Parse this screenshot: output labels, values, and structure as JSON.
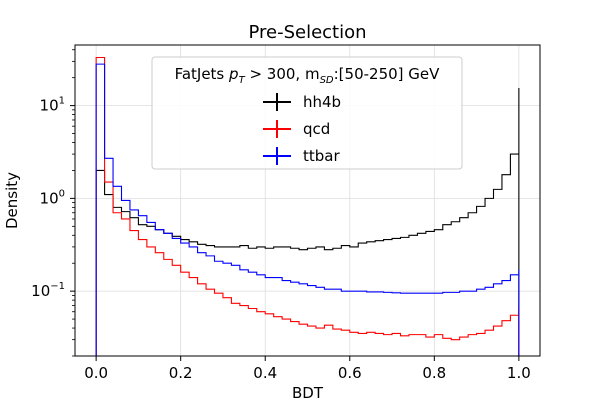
{
  "chart_data": {
    "type": "line",
    "title": "Pre-Selection",
    "xlabel": "BDT",
    "ylabel": "Density",
    "xlim": [
      -0.05,
      1.05
    ],
    "ylim": [
      0.02,
      45
    ],
    "yscale": "log",
    "grid": true,
    "bin_width": 0.02,
    "x_ticks": [
      {
        "value": 0.0,
        "label": "0.0"
      },
      {
        "value": 0.2,
        "label": "0.2"
      },
      {
        "value": 0.4,
        "label": "0.4"
      },
      {
        "value": 0.6,
        "label": "0.6"
      },
      {
        "value": 0.8,
        "label": "0.8"
      },
      {
        "value": 1.0,
        "label": "1.0"
      }
    ],
    "y_ticks": [
      {
        "value": 0.1,
        "base": "10",
        "exp": "−1"
      },
      {
        "value": 1,
        "base": "10",
        "exp": "0"
      },
      {
        "value": 10,
        "base": "10",
        "exp": "1"
      }
    ],
    "legend": {
      "placement": "upper center",
      "title_parts": [
        "FatJets ",
        "p",
        "T",
        " > 300, m",
        "SD",
        ":[50-250] GeV"
      ]
    },
    "series": [
      {
        "name": "hh4b",
        "color": "#000000",
        "values": [
          2.0,
          1.1,
          0.8,
          0.72,
          0.62,
          0.52,
          0.5,
          0.46,
          0.42,
          0.39,
          0.36,
          0.34,
          0.32,
          0.31,
          0.3,
          0.3,
          0.3,
          0.31,
          0.29,
          0.3,
          0.29,
          0.3,
          0.3,
          0.29,
          0.28,
          0.29,
          0.3,
          0.28,
          0.29,
          0.31,
          0.3,
          0.33,
          0.34,
          0.35,
          0.36,
          0.37,
          0.38,
          0.4,
          0.42,
          0.44,
          0.46,
          0.52,
          0.56,
          0.62,
          0.7,
          0.82,
          1.0,
          1.25,
          1.8,
          3.0,
          15.5
        ]
      },
      {
        "name": "qcd",
        "color": "#ff0000",
        "values": [
          33,
          1.5,
          0.7,
          0.6,
          0.45,
          0.36,
          0.3,
          0.26,
          0.22,
          0.19,
          0.16,
          0.14,
          0.12,
          0.105,
          0.095,
          0.085,
          0.074,
          0.07,
          0.065,
          0.06,
          0.057,
          0.053,
          0.05,
          0.047,
          0.044,
          0.042,
          0.04,
          0.043,
          0.039,
          0.038,
          0.036,
          0.035,
          0.036,
          0.035,
          0.034,
          0.035,
          0.033,
          0.034,
          0.034,
          0.032,
          0.034,
          0.031,
          0.03,
          0.032,
          0.034,
          0.035,
          0.038,
          0.042,
          0.048,
          0.055,
          0.065
        ]
      },
      {
        "name": "ttbar",
        "color": "#0000ff",
        "values": [
          28,
          2.7,
          1.35,
          0.95,
          0.75,
          0.65,
          0.55,
          0.46,
          0.42,
          0.37,
          0.33,
          0.3,
          0.26,
          0.24,
          0.21,
          0.2,
          0.19,
          0.17,
          0.16,
          0.15,
          0.14,
          0.14,
          0.13,
          0.125,
          0.12,
          0.115,
          0.11,
          0.105,
          0.105,
          0.1,
          0.1,
          0.1,
          0.098,
          0.098,
          0.097,
          0.096,
          0.095,
          0.095,
          0.095,
          0.095,
          0.095,
          0.097,
          0.097,
          0.1,
          0.1,
          0.105,
          0.11,
          0.12,
          0.13,
          0.15,
          0.17
        ]
      }
    ]
  }
}
